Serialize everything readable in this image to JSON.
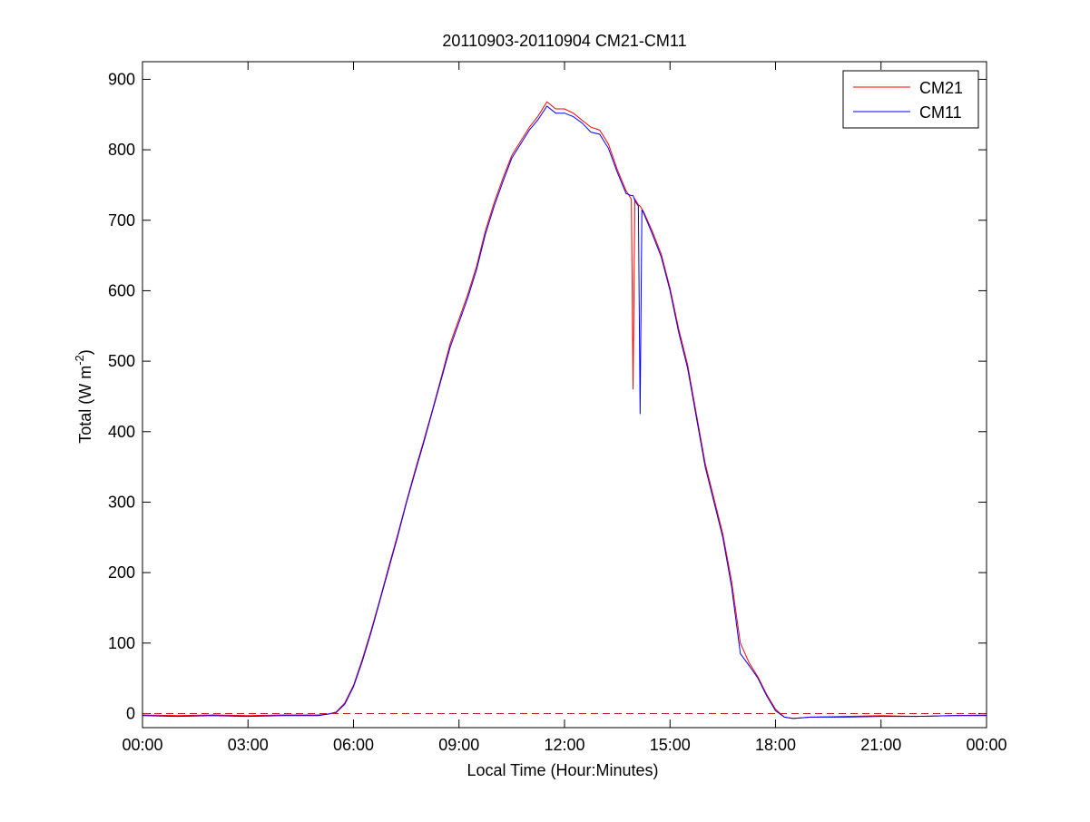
{
  "chart_data": {
    "type": "line",
    "title": "20110903-20110904 CM21-CM11",
    "xlabel": "Local Time (Hour:Minutes)",
    "ylabel": {
      "text": "Total (W m",
      "sup": "-2",
      "end": ")"
    },
    "x": [
      0,
      1,
      2,
      3,
      4,
      5,
      5.25,
      5.5,
      5.75,
      6,
      6.25,
      6.5,
      6.75,
      7,
      7.25,
      7.5,
      7.75,
      8,
      8.25,
      8.5,
      8.75,
      9,
      9.25,
      9.5,
      9.75,
      10,
      10.25,
      10.5,
      10.75,
      11,
      11.25,
      11.5,
      11.75,
      12,
      12.25,
      12.5,
      12.75,
      13,
      13.25,
      13.5,
      13.75,
      13.9,
      13.95,
      14,
      14.1,
      14.15,
      14.2,
      14.25,
      14.5,
      14.75,
      15,
      15.25,
      15.5,
      15.75,
      16,
      16.25,
      16.5,
      16.75,
      17,
      17.25,
      17.5,
      17.75,
      18,
      18.25,
      18.5,
      19,
      20,
      21,
      22,
      23,
      24
    ],
    "series": [
      {
        "name": "CM21",
        "color": "#ff0000",
        "values": [
          -2,
          -3,
          -2,
          -3,
          -2,
          -2,
          -1,
          2,
          15,
          40,
          77,
          118,
          162,
          208,
          253,
          300,
          345,
          388,
          432,
          478,
          525,
          560,
          595,
          635,
          685,
          725,
          760,
          792,
          812,
          832,
          848,
          868,
          858,
          858,
          852,
          842,
          832,
          828,
          808,
          772,
          742,
          730,
          460,
          730,
          722,
          720,
          716,
          712,
          684,
          652,
          604,
          545,
          495,
          425,
          355,
          305,
          255,
          188,
          100,
          72,
          52,
          27,
          6,
          -5,
          -7,
          -5,
          -4,
          -3,
          -4,
          -3,
          -2
        ]
      },
      {
        "name": "CM11",
        "color": "#0000ff",
        "values": [
          -3,
          -4,
          -3,
          -4,
          -3,
          -3,
          -1,
          1,
          13,
          38,
          74,
          115,
          160,
          205,
          250,
          298,
          342,
          385,
          430,
          475,
          520,
          555,
          590,
          630,
          680,
          720,
          755,
          788,
          808,
          828,
          843,
          862,
          852,
          852,
          847,
          838,
          825,
          822,
          802,
          768,
          738,
          735,
          735,
          728,
          720,
          425,
          715,
          710,
          680,
          648,
          600,
          540,
          490,
          420,
          350,
          300,
          250,
          180,
          85,
          68,
          50,
          25,
          4,
          -5,
          -7,
          -5,
          -5,
          -4,
          -4,
          -3,
          -3
        ]
      }
    ],
    "hline": {
      "value": 0,
      "color": "#b22222"
    },
    "xlim": [
      0,
      24
    ],
    "xticks": [
      {
        "value": 0,
        "label": "00:00"
      },
      {
        "value": 3,
        "label": "03:00"
      },
      {
        "value": 6,
        "label": "06:00"
      },
      {
        "value": 9,
        "label": "09:00"
      },
      {
        "value": 12,
        "label": "12:00"
      },
      {
        "value": 15,
        "label": "15:00"
      },
      {
        "value": 18,
        "label": "18:00"
      },
      {
        "value": 21,
        "label": "21:00"
      },
      {
        "value": 24,
        "label": "00:00"
      }
    ],
    "ylim": [
      -20,
      925
    ],
    "yticks": [
      0,
      100,
      200,
      300,
      400,
      500,
      600,
      700,
      800,
      900
    ],
    "grid": false,
    "legend": "northeast"
  }
}
